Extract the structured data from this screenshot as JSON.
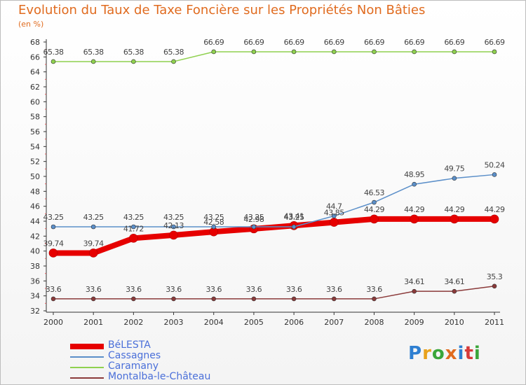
{
  "title": "Evolution du Taux de Taxe Foncière sur les Propriétés Non Bâties",
  "unit_label": "(en %)",
  "brand": "Proxiti",
  "chart_data": {
    "type": "line",
    "x": [
      "2000",
      "2001",
      "2002",
      "2003",
      "2004",
      "2005",
      "2006",
      "2007",
      "2008",
      "2009",
      "2010",
      "2011"
    ],
    "ylim": [
      32,
      68
    ],
    "yticks": [
      32,
      34,
      36,
      38,
      40,
      42,
      44,
      46,
      48,
      50,
      52,
      54,
      56,
      58,
      60,
      62,
      64,
      66,
      68
    ],
    "grid": false,
    "legend_position": "bottom-left",
    "series": [
      {
        "name": "BéLESTA",
        "color": "#e60000",
        "width": 8,
        "values": [
          39.74,
          39.74,
          41.72,
          42.13,
          42.58,
          42.98,
          43.41,
          43.85,
          44.29,
          44.29,
          44.29,
          44.29
        ],
        "labels": [
          "39.74",
          "39.74",
          "41.72",
          "42.13",
          "42.58",
          "42.98",
          "43.41",
          "43.85",
          "44.29",
          "44.29",
          "44.29",
          "44.29"
        ]
      },
      {
        "name": "Cassagnes",
        "color": "#5b8fc9",
        "width": 1.5,
        "values": [
          43.25,
          43.25,
          43.25,
          43.25,
          43.25,
          43.25,
          43.25,
          44.7,
          46.53,
          48.95,
          49.75,
          50.24
        ],
        "labels": [
          "43.25",
          "43.25",
          "43.25",
          "43.25",
          "43.25",
          "43.25",
          "43.25",
          "44.7",
          "46.53",
          "48.95",
          "49.75",
          "50.24"
        ]
      },
      {
        "name": "Caramany",
        "color": "#8fd14f",
        "width": 1.5,
        "values": [
          65.38,
          65.38,
          65.38,
          65.38,
          66.69,
          66.69,
          66.69,
          66.69,
          66.69,
          66.69,
          66.69,
          66.69
        ],
        "labels": [
          "65.38",
          "65.38",
          "65.38",
          "65.38",
          "66.69",
          "66.69",
          "66.69",
          "66.69",
          "66.69",
          "66.69",
          "66.69",
          "66.69"
        ]
      },
      {
        "name": "Montalba-le-Château",
        "color": "#8b3a3a",
        "width": 1.5,
        "values": [
          33.6,
          33.6,
          33.6,
          33.6,
          33.6,
          33.6,
          33.6,
          33.6,
          33.6,
          34.61,
          34.61,
          35.3
        ],
        "labels": [
          "33.6",
          "33.6",
          "33.6",
          "33.6",
          "33.6",
          "33.6",
          "33.6",
          "33.6",
          "33.6",
          "34.61",
          "34.61",
          "35.3"
        ]
      }
    ]
  }
}
